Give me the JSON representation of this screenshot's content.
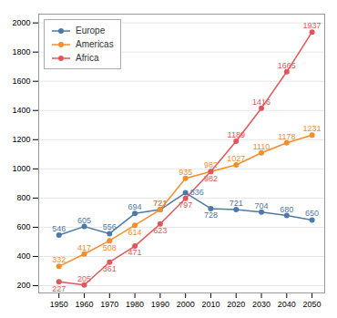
{
  "chart_data": {
    "type": "line",
    "x": [
      1950,
      1960,
      1970,
      1980,
      1990,
      2000,
      2010,
      2020,
      2030,
      2040,
      2050
    ],
    "series": [
      {
        "name": "Europe",
        "values": [
          546,
          605,
          556,
          694,
          721,
          836,
          728,
          721,
          704,
          680,
          650
        ]
      },
      {
        "name": "Americas",
        "values": [
          332,
          417,
          508,
          614,
          721,
          935,
          982,
          1027,
          1110,
          1178,
          1231
        ]
      },
      {
        "name": "Africa",
        "values": [
          227,
          205,
          361,
          471,
          623,
          797,
          982,
          1189,
          1416,
          1665,
          1937
        ]
      }
    ],
    "xlim": [
      1942,
      2055
    ],
    "xticks": [
      1950,
      1960,
      1970,
      1980,
      1990,
      2000,
      2010,
      2020,
      2030,
      2040,
      2050
    ],
    "ylim": [
      150,
      2060
    ],
    "yticks": [
      200,
      400,
      600,
      800,
      1000,
      1200,
      1400,
      1600,
      1800,
      2000
    ],
    "grid": true,
    "legend": "upper left",
    "data_labels": true,
    "marker": "circle"
  }
}
